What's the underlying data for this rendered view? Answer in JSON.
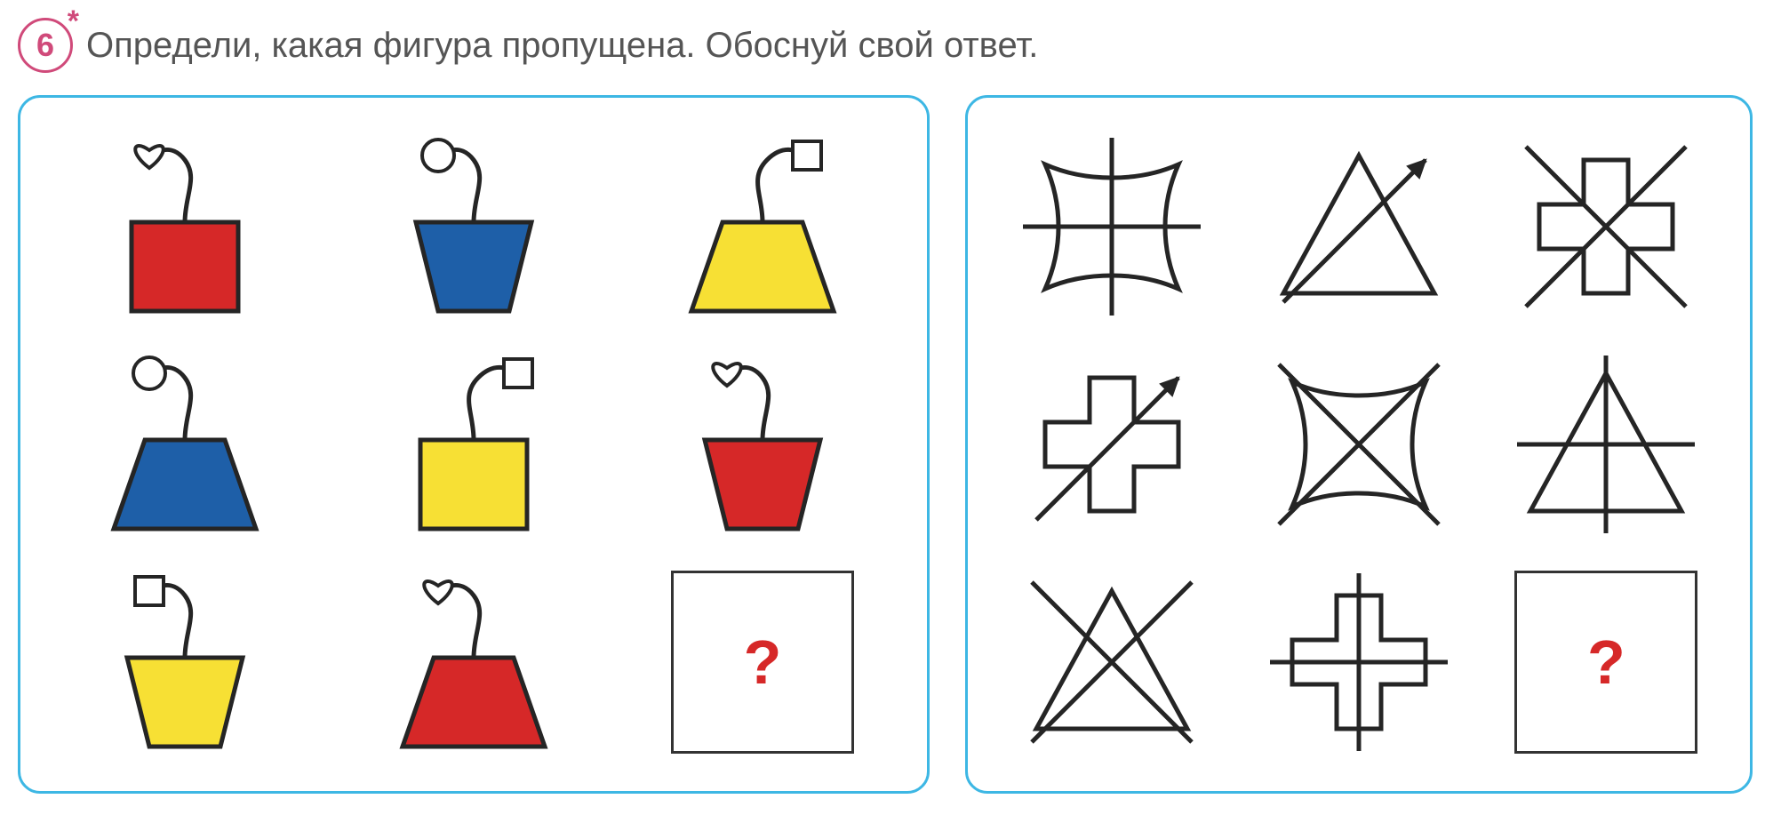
{
  "header": {
    "number": "6",
    "asterisk": "*",
    "title": "Определи, какая фигура пропущена. Обоснуй свой ответ."
  },
  "question_mark": "?",
  "colors": {
    "red": "#d62828",
    "blue": "#1e5fa8",
    "yellow": "#f7e034",
    "outline": "#252525",
    "border_blue": "#3db7e4",
    "badge_pink": "#d04a7a",
    "white": "#ffffff"
  },
  "left_grid": {
    "cells": [
      {
        "vase_shape": "square",
        "vase_color": "#d62828",
        "stem_dir": "left",
        "tag_shape": "heart"
      },
      {
        "vase_shape": "trapezoid_narrow",
        "vase_color": "#1e5fa8",
        "stem_dir": "left",
        "tag_shape": "circle"
      },
      {
        "vase_shape": "trapezoid_wide",
        "vase_color": "#f7e034",
        "stem_dir": "right",
        "tag_shape": "square"
      },
      {
        "vase_shape": "trapezoid_wide",
        "vase_color": "#1e5fa8",
        "stem_dir": "left",
        "tag_shape": "circle"
      },
      {
        "vase_shape": "square",
        "vase_color": "#f7e034",
        "stem_dir": "right",
        "tag_shape": "square"
      },
      {
        "vase_shape": "trapezoid_narrow",
        "vase_color": "#d62828",
        "stem_dir": "left",
        "tag_shape": "heart"
      },
      {
        "vase_shape": "trapezoid_narrow",
        "vase_color": "#f7e034",
        "stem_dir": "left",
        "tag_shape": "square"
      },
      {
        "vase_shape": "trapezoid_wide",
        "vase_color": "#d62828",
        "stem_dir": "left",
        "tag_shape": "heart"
      },
      {
        "question": true
      }
    ]
  },
  "right_grid": {
    "cells": [
      {
        "shape": "pincushion",
        "overlay": "plus_lines"
      },
      {
        "shape": "triangle",
        "overlay": "arrow"
      },
      {
        "shape": "cross",
        "overlay": "x_lines"
      },
      {
        "shape": "cross",
        "overlay": "arrow"
      },
      {
        "shape": "pincushion",
        "overlay": "x_lines"
      },
      {
        "shape": "triangle",
        "overlay": "plus_lines"
      },
      {
        "shape": "triangle",
        "overlay": "x_lines"
      },
      {
        "shape": "cross",
        "overlay": "plus_lines"
      },
      {
        "question": true
      }
    ]
  },
  "svg": {
    "stroke_width": 5,
    "thin_stroke": 4
  }
}
